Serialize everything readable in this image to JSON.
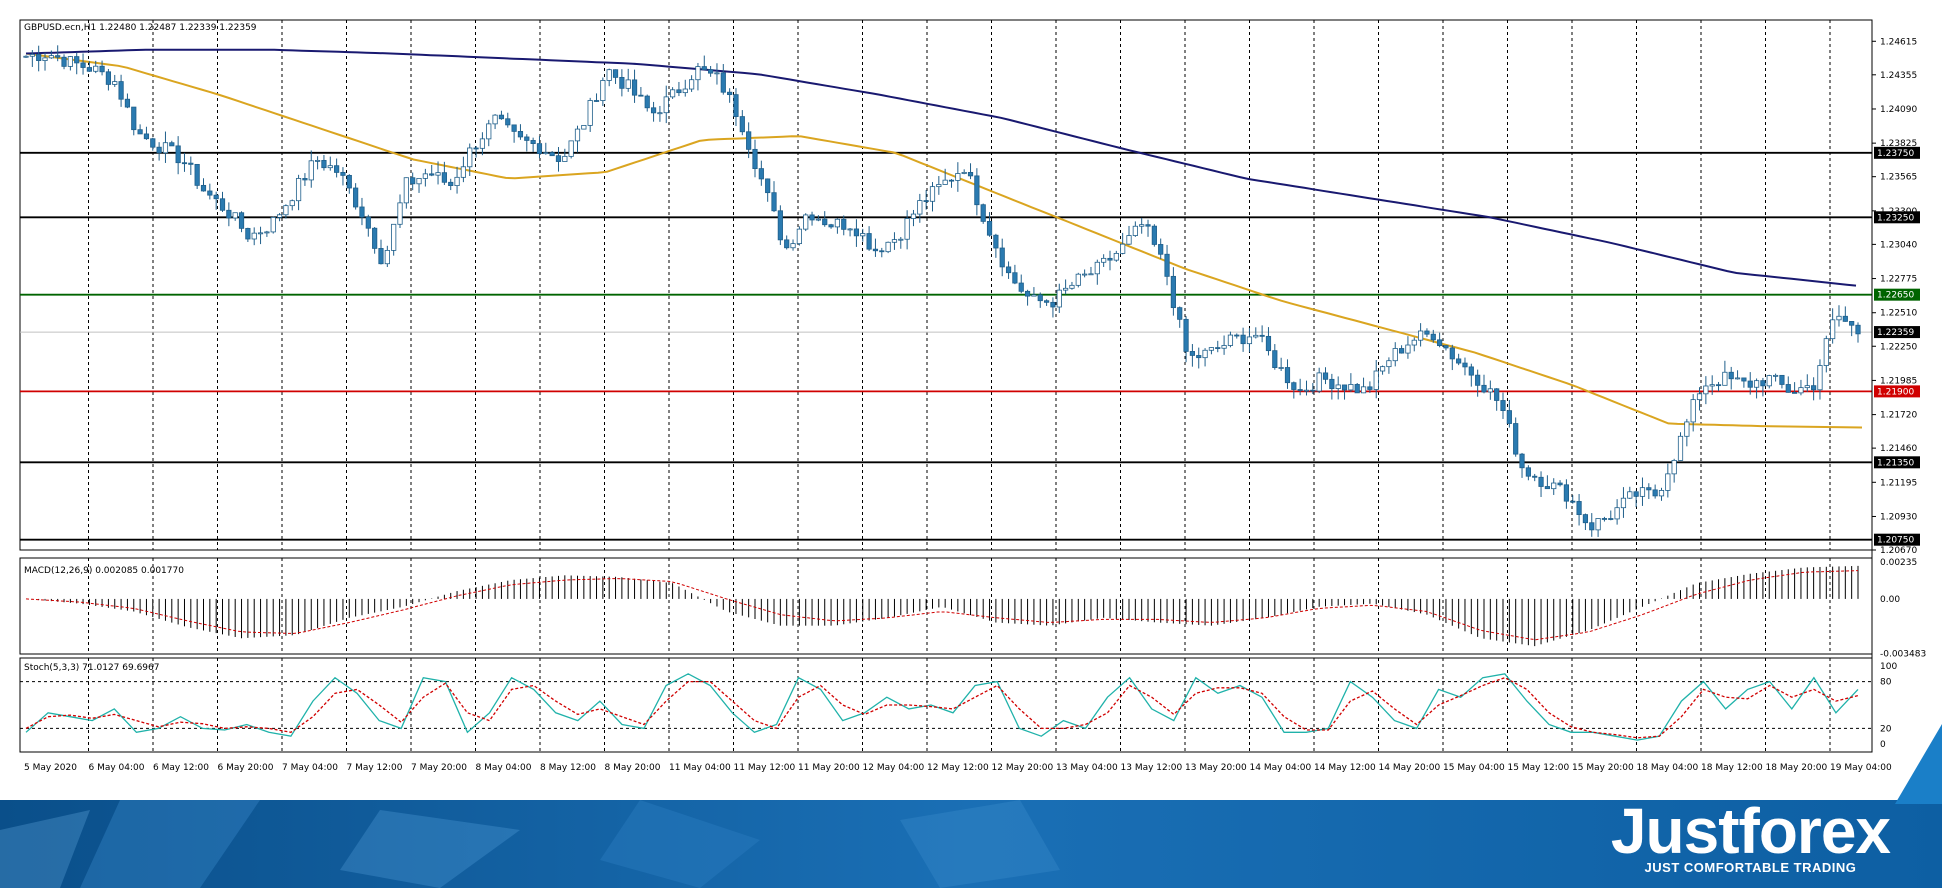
{
  "brand": {
    "name": "Justforex",
    "tagline": "JUST COMFORTABLE TRADING"
  },
  "chart_data": [
    {
      "type": "candlestick",
      "title": "GBPUSD.ecn,H1  1.22480 1.22487 1.22339 1.22359",
      "ylim": [
        1.2067,
        1.2478
      ],
      "y_ticks": [
        "1.24615",
        "1.24355",
        "1.24090",
        "1.23825",
        "1.23565",
        "1.23300",
        "1.23040",
        "1.22775",
        "1.22510",
        "1.22250",
        "1.21985",
        "1.21720",
        "1.21460",
        "1.21195",
        "1.20930",
        "1.20670"
      ],
      "x_ticks": [
        "5 May 2020",
        "6 May 04:00",
        "6 May 12:00",
        "6 May 20:00",
        "7 May 04:00",
        "7 May 12:00",
        "7 May 20:00",
        "8 May 04:00",
        "8 May 12:00",
        "8 May 20:00",
        "11 May 04:00",
        "11 May 12:00",
        "11 May 20:00",
        "12 May 04:00",
        "12 May 12:00",
        "12 May 20:00",
        "13 May 04:00",
        "13 May 12:00",
        "13 May 20:00",
        "14 May 04:00",
        "14 May 12:00",
        "14 May 20:00",
        "15 May 04:00",
        "15 May 12:00",
        "15 May 20:00",
        "18 May 04:00",
        "18 May 12:00",
        "18 May 20:00",
        "19 May 04:00"
      ],
      "horizontal_levels": [
        {
          "price": 1.2375,
          "label": "1.23750",
          "color": "#000000"
        },
        {
          "price": 1.2325,
          "label": "1.23250",
          "color": "#000000"
        },
        {
          "price": 1.2265,
          "label": "1.22650",
          "color": "#006400"
        },
        {
          "price": 1.2236,
          "label": "1.22359",
          "color": "#c0c0c0"
        },
        {
          "price": 1.219,
          "label": "1.21900",
          "color": "#d00000"
        },
        {
          "price": 1.2135,
          "label": "1.21350",
          "color": "#000000"
        },
        {
          "price": 1.2075,
          "label": "1.20750",
          "color": "#000000"
        }
      ],
      "key_points": [
        1.245,
        1.2452,
        1.2445,
        1.244,
        1.243,
        1.239,
        1.238,
        1.237,
        1.2345,
        1.233,
        1.231,
        1.232,
        1.2345,
        1.237,
        1.236,
        1.233,
        1.229,
        1.235,
        1.236,
        1.235,
        1.238,
        1.24,
        1.2385,
        1.238,
        1.237,
        1.24,
        1.244,
        1.2425,
        1.2405,
        1.242,
        1.244,
        1.2432,
        1.24,
        1.235,
        1.23,
        1.233,
        1.232,
        1.232,
        1.23,
        1.231,
        1.2335,
        1.235,
        1.2365,
        1.232,
        1.228,
        1.226,
        1.226,
        1.2275,
        1.2285,
        1.23,
        1.232,
        1.2285,
        1.2215,
        1.222,
        1.223,
        1.2235,
        1.221,
        1.219,
        1.22,
        1.2195,
        1.219,
        1.2215,
        1.223,
        1.2235,
        1.2215,
        1.22,
        1.218,
        1.213,
        1.212,
        1.211,
        1.2085,
        1.2095,
        1.211,
        1.211,
        1.215,
        1.2195,
        1.22,
        1.2195,
        1.22,
        1.219,
        1.2195,
        1.225,
        1.2236
      ],
      "series": [
        {
          "name": "MA fast",
          "color": "#daa520",
          "key_points": [
            1.2452,
            1.2442,
            1.242,
            1.2395,
            1.237,
            1.2355,
            1.236,
            1.2385,
            1.2388,
            1.2375,
            1.2345,
            1.2315,
            1.2285,
            1.226,
            1.224,
            1.222,
            1.2195,
            1.2165,
            1.2163,
            1.2162
          ]
        },
        {
          "name": "MA slow",
          "color": "#191970",
          "key_points": [
            1.2452,
            1.2455,
            1.2455,
            1.2452,
            1.2448,
            1.2444,
            1.2436,
            1.242,
            1.2402,
            1.2378,
            1.2355,
            1.234,
            1.2325,
            1.2305,
            1.2282,
            1.2272
          ]
        }
      ]
    },
    {
      "type": "histogram",
      "title": "MACD(12,26,9) 0.002085 0.001770",
      "y_ticks": [
        "0.00235",
        "0.00",
        "-0.003483"
      ],
      "ylim": [
        -0.0035,
        0.0026
      ],
      "key_points": [
        0.0,
        -0.0003,
        -0.0008,
        -0.0018,
        -0.0025,
        -0.0023,
        -0.0012,
        -0.0005,
        0.0005,
        0.0012,
        0.0015,
        0.0014,
        0.001,
        -0.0008,
        -0.0017,
        -0.0017,
        -0.0012,
        -0.0005,
        -0.0015,
        -0.0017,
        -0.0012,
        -0.0015,
        -0.0017,
        -0.0012,
        -0.0005,
        -0.0003,
        -0.001,
        -0.0025,
        -0.003,
        -0.002,
        -0.0005,
        0.001,
        0.0016,
        0.002,
        0.0021
      ],
      "series": [
        {
          "name": "signal",
          "color": "#d00000",
          "key_points": [
            0.0,
            -0.0002,
            -0.0006,
            -0.0014,
            -0.0021,
            -0.0022,
            -0.0015,
            -0.0007,
            0.0002,
            0.0009,
            0.0012,
            0.0013,
            0.0011,
            0.0,
            -0.001,
            -0.0014,
            -0.0012,
            -0.0008,
            -0.0012,
            -0.0015,
            -0.0013,
            -0.0013,
            -0.0015,
            -0.0012,
            -0.0006,
            -0.0004,
            -0.0008,
            -0.002,
            -0.0026,
            -0.0021,
            -0.001,
            0.0003,
            0.0012,
            0.0017,
            0.0018
          ]
        }
      ]
    },
    {
      "type": "line",
      "title": "Stoch(5,3,3) 71.0127 69.6967",
      "y_ticks": [
        "100",
        "80",
        "20",
        "0"
      ],
      "ylim": [
        0,
        100
      ],
      "levels": [
        80,
        20
      ],
      "series": [
        {
          "name": "%K",
          "color": "#20b2aa",
          "key_points": [
            15,
            40,
            35,
            30,
            45,
            15,
            20,
            35,
            20,
            18,
            25,
            15,
            10,
            55,
            85,
            65,
            30,
            20,
            85,
            80,
            15,
            40,
            85,
            70,
            40,
            30,
            55,
            25,
            20,
            75,
            90,
            75,
            40,
            15,
            25,
            85,
            70,
            30,
            40,
            60,
            45,
            50,
            40,
            75,
            80,
            20,
            10,
            30,
            20,
            60,
            85,
            45,
            30,
            85,
            65,
            75,
            60,
            15,
            15,
            20,
            80,
            60,
            30,
            20,
            70,
            60,
            85,
            90,
            55,
            25,
            15,
            15,
            10,
            5,
            10,
            55,
            80,
            45,
            70,
            80,
            45,
            85,
            40,
            70
          ]
        },
        {
          "name": "%D",
          "color": "#d00000",
          "key_points": [
            20,
            35,
            37,
            33,
            38,
            30,
            22,
            28,
            26,
            20,
            22,
            20,
            15,
            35,
            65,
            70,
            50,
            28,
            60,
            78,
            40,
            30,
            70,
            75,
            55,
            38,
            45,
            35,
            25,
            55,
            80,
            80,
            55,
            30,
            20,
            60,
            75,
            50,
            38,
            50,
            50,
            48,
            45,
            60,
            75,
            45,
            20,
            20,
            25,
            40,
            75,
            60,
            38,
            65,
            72,
            72,
            65,
            35,
            18,
            18,
            55,
            68,
            45,
            25,
            50,
            62,
            75,
            85,
            70,
            40,
            22,
            15,
            12,
            8,
            10,
            35,
            70,
            60,
            58,
            75,
            60,
            70,
            55,
            62
          ]
        }
      ]
    }
  ]
}
